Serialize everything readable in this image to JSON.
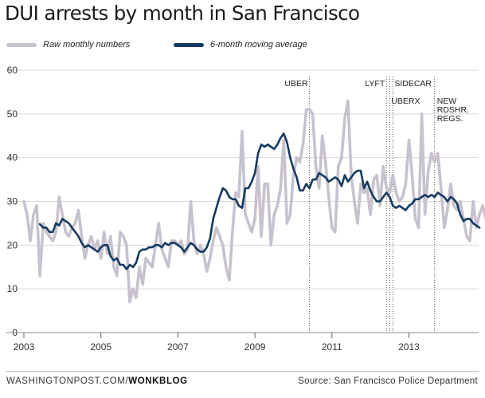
{
  "header": {
    "title": "DUI arrests by month in San Francisco"
  },
  "footer": {
    "site": "WASHINGTONPOST.COM/",
    "section": "WONKBLOG",
    "source": "Source: San Francisco Police Department"
  },
  "colors": {
    "raw": "#c7c2ce",
    "average": "#153a61",
    "grid": "#d9d9d9",
    "event_line": "#555555"
  },
  "chart_data": {
    "type": "line",
    "title": "DUI arrests by month in San Francisco",
    "xlabel": "",
    "ylabel": "",
    "ylim": [
      0,
      60
    ],
    "yticks": [
      0,
      10,
      20,
      30,
      40,
      50,
      60
    ],
    "xlim": [
      "2003-01",
      "2014-07"
    ],
    "xticks": [
      "2003",
      "2005",
      "2007",
      "2009",
      "2011",
      "2013"
    ],
    "grid": "horizontal",
    "legend_position": "top",
    "series": [
      {
        "name": "Raw monthly numbers",
        "start": "2003-01",
        "values": [
          30,
          27,
          21,
          27,
          29,
          13,
          25,
          23,
          22,
          21,
          23,
          31,
          27,
          23,
          22,
          24,
          25,
          28,
          22,
          17,
          20,
          22,
          19,
          21,
          17,
          23,
          18,
          22,
          15,
          13,
          23,
          22,
          20,
          7,
          10,
          8,
          15,
          11,
          17,
          16,
          15,
          20,
          25,
          19,
          17,
          15,
          21,
          21,
          20,
          21,
          18,
          19,
          30,
          21,
          18,
          20,
          18,
          14,
          17,
          21,
          24,
          22,
          20,
          15,
          12,
          23,
          32,
          31,
          46,
          27,
          25,
          23,
          26,
          38,
          22,
          34,
          34,
          20,
          27,
          29,
          33,
          44,
          25,
          27,
          36,
          40,
          39,
          43,
          51,
          51,
          50,
          38,
          33,
          45,
          39,
          31,
          24,
          23,
          38,
          40,
          49,
          53,
          36,
          30,
          25,
          34,
          32,
          33,
          27,
          35,
          36,
          29,
          38,
          33,
          32,
          36,
          32,
          30,
          31,
          34,
          44,
          36,
          26,
          24,
          50,
          27,
          37,
          41,
          39,
          41,
          33,
          24,
          28,
          34,
          29,
          28,
          30,
          26,
          22,
          21,
          30,
          24,
          27,
          29,
          26,
          30,
          32,
          27,
          30,
          28,
          30,
          28,
          32,
          30,
          25,
          34,
          31,
          29,
          27,
          30,
          30,
          20,
          19,
          29,
          25,
          24,
          29,
          22,
          18
        ]
      },
      {
        "name": "6-month moving average",
        "start": "2003-06",
        "values": [
          24.8,
          24,
          24,
          23,
          23,
          25,
          24.5,
          26,
          25.5,
          25,
          24,
          23,
          22,
          20.5,
          19.5,
          20,
          19.5,
          19,
          18.5,
          19.5,
          20,
          20,
          17.5,
          16.5,
          17,
          15.5,
          15.5,
          14.5,
          15.5,
          15,
          16,
          18.5,
          19,
          19,
          19.5,
          19.5,
          20,
          20,
          19.5,
          20.5,
          20,
          20.5,
          20.5,
          20,
          19.5,
          18.5,
          19.5,
          20.5,
          20,
          19,
          18.5,
          18.5,
          19.5,
          21.5,
          26,
          28.5,
          31,
          33,
          32.5,
          31,
          30.5,
          30.5,
          29,
          28.5,
          33,
          33,
          34.5,
          36.5,
          41,
          43,
          42.5,
          43,
          42.5,
          42,
          43,
          44.5,
          45.5,
          43.5,
          40,
          37.5,
          35.5,
          32.5,
          32.5,
          34,
          33,
          35,
          35,
          36.5,
          36,
          35.5,
          34.5,
          35,
          35.5,
          35,
          33.5,
          36,
          34.5,
          35.5,
          36.5,
          37,
          37,
          33,
          34.5,
          32.5,
          31,
          30,
          30,
          31,
          32,
          31,
          29,
          28.5,
          29,
          28.5,
          28,
          29,
          29.5,
          30.5,
          30.5,
          31,
          31.5,
          31,
          31.5,
          31,
          32,
          31.5,
          31,
          30,
          31,
          30.5,
          29.5,
          27,
          25.5,
          26,
          26,
          25,
          24.5,
          24
        ]
      }
    ],
    "annotations": [
      {
        "label": "UBER",
        "date": "2010-06"
      },
      {
        "label": "LYFT",
        "date": "2012-06"
      },
      {
        "label": "SIDECAR",
        "date": "2012-08"
      },
      {
        "label": "UBERX",
        "date": "2012-07"
      },
      {
        "label": "NEW RDSHR. REGS.",
        "date": "2013-09"
      }
    ]
  }
}
